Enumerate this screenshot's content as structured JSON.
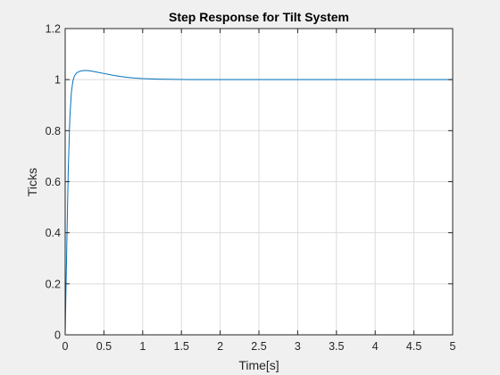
{
  "chart_data": {
    "type": "line",
    "title": "Step Response for Tilt System",
    "xlabel": "Time[s]",
    "ylabel": "Ticks",
    "xlim": [
      0,
      5
    ],
    "ylim": [
      0,
      1.2
    ],
    "xticks": [
      0,
      0.5,
      1,
      1.5,
      2,
      2.5,
      3,
      3.5,
      4,
      4.5,
      5
    ],
    "xtick_labels": [
      "0",
      "0.5",
      "1",
      "1.5",
      "2",
      "2.5",
      "3",
      "3.5",
      "4",
      "4.5",
      "5"
    ],
    "yticks": [
      0,
      0.2,
      0.4,
      0.6,
      0.8,
      1,
      1.2
    ],
    "ytick_labels": [
      "0",
      "0.2",
      "0.4",
      "0.6",
      "0.8",
      "1",
      "1.2"
    ],
    "grid": true,
    "series": [
      {
        "color": "#0072bd",
        "x": [
          0,
          0.02,
          0.04,
          0.06,
          0.08,
          0.1,
          0.12,
          0.15,
          0.2,
          0.25,
          0.3,
          0.35,
          0.4,
          0.5,
          0.6,
          0.7,
          0.8,
          0.9,
          1.0,
          1.2,
          1.4,
          1.6,
          1.8,
          2.0,
          2.5,
          3.0,
          3.5,
          4.0,
          4.5,
          5.0
        ],
        "y": [
          0,
          0.34,
          0.65,
          0.85,
          0.95,
          0.995,
          1.015,
          1.027,
          1.034,
          1.036,
          1.035,
          1.033,
          1.03,
          1.024,
          1.018,
          1.013,
          1.009,
          1.006,
          1.004,
          1.002,
          1.001,
          1.0,
          1.0,
          1.0,
          1.0,
          1.0,
          1.0,
          1.0,
          1.0,
          1.0
        ]
      }
    ]
  }
}
